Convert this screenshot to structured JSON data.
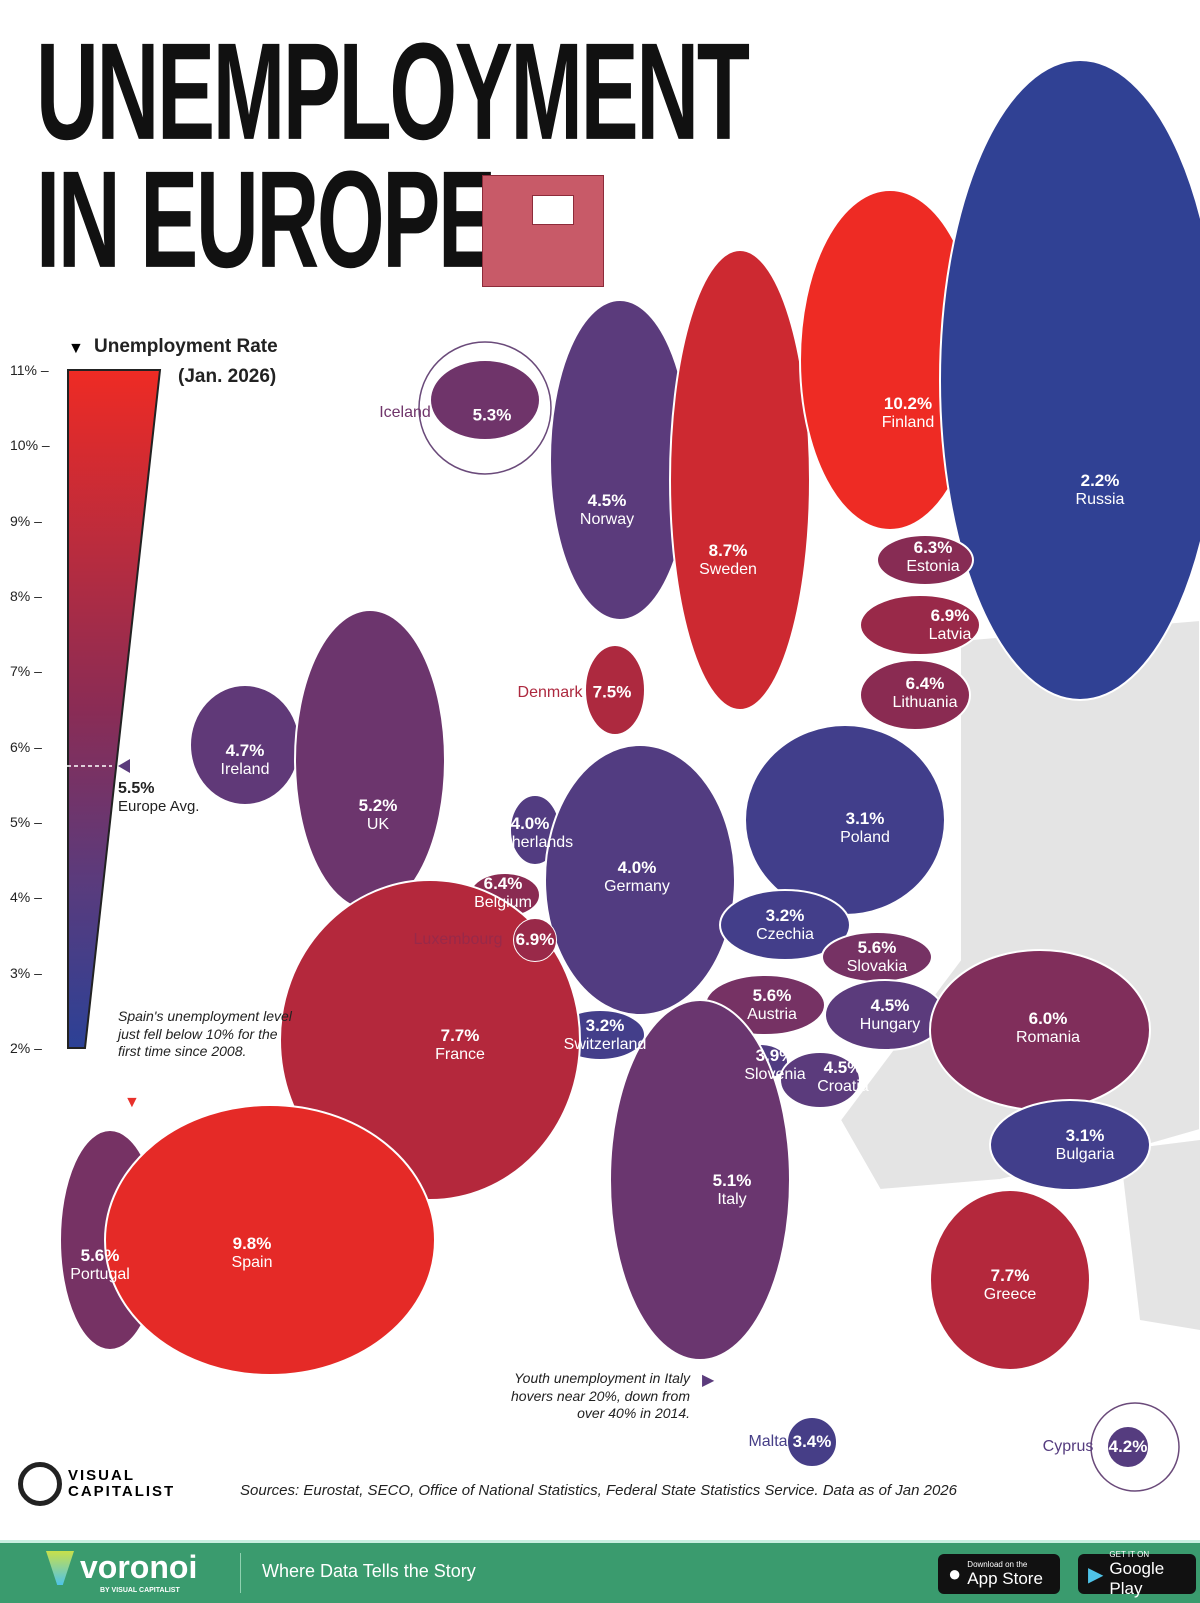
{
  "title": {
    "line1": "UNEMPLOYMENT",
    "line2": "IN EUROPE"
  },
  "legend": {
    "title": "Unemployment Rate",
    "subtitle": "(Jan. 2026)",
    "ticks": [
      "11%",
      "10%",
      "9%",
      "8%",
      "7%",
      "6%",
      "5%",
      "4%",
      "3%",
      "2%"
    ],
    "range": [
      2,
      11
    ],
    "average_value": "5.5%",
    "average_label": "Europe Avg.",
    "color_low": "#2c4196",
    "color_mid": "#6a3a78",
    "color_high": "#ee2b24"
  },
  "countries": [
    {
      "name": "Iceland",
      "value": "5.3%",
      "rate": 5.3
    },
    {
      "name": "Norway",
      "value": "4.5%",
      "rate": 4.5
    },
    {
      "name": "Sweden",
      "value": "8.7%",
      "rate": 8.7
    },
    {
      "name": "Finland",
      "value": "10.2%",
      "rate": 10.2
    },
    {
      "name": "Russia",
      "value": "2.2%",
      "rate": 2.2
    },
    {
      "name": "Estonia",
      "value": "6.3%",
      "rate": 6.3
    },
    {
      "name": "Latvia",
      "value": "6.9%",
      "rate": 6.9
    },
    {
      "name": "Lithuania",
      "value": "6.4%",
      "rate": 6.4
    },
    {
      "name": "Denmark",
      "value": "7.5%",
      "rate": 7.5
    },
    {
      "name": "Ireland",
      "value": "4.7%",
      "rate": 4.7
    },
    {
      "name": "UK",
      "value": "5.2%",
      "rate": 5.2
    },
    {
      "name": "Netherlands",
      "value": "4.0%",
      "rate": 4.0
    },
    {
      "name": "Belgium",
      "value": "6.4%",
      "rate": 6.4
    },
    {
      "name": "Luxembourg",
      "value": "6.9%",
      "rate": 6.9
    },
    {
      "name": "Germany",
      "value": "4.0%",
      "rate": 4.0
    },
    {
      "name": "Poland",
      "value": "3.1%",
      "rate": 3.1
    },
    {
      "name": "Czechia",
      "value": "3.2%",
      "rate": 3.2
    },
    {
      "name": "Slovakia",
      "value": "5.6%",
      "rate": 5.6
    },
    {
      "name": "Austria",
      "value": "5.6%",
      "rate": 5.6
    },
    {
      "name": "Hungary",
      "value": "4.5%",
      "rate": 4.5
    },
    {
      "name": "Romania",
      "value": "6.0%",
      "rate": 6.0
    },
    {
      "name": "Switzerland",
      "value": "3.2%",
      "rate": 3.2
    },
    {
      "name": "France",
      "value": "7.7%",
      "rate": 7.7
    },
    {
      "name": "Slovenia",
      "value": "3.9%",
      "rate": 3.9
    },
    {
      "name": "Croatia",
      "value": "4.5%",
      "rate": 4.5
    },
    {
      "name": "Bulgaria",
      "value": "3.1%",
      "rate": 3.1
    },
    {
      "name": "Italy",
      "value": "5.1%",
      "rate": 5.1
    },
    {
      "name": "Portugal",
      "value": "5.6%",
      "rate": 5.6
    },
    {
      "name": "Spain",
      "value": "9.8%",
      "rate": 9.8
    },
    {
      "name": "Greece",
      "value": "7.7%",
      "rate": 7.7
    },
    {
      "name": "Malta",
      "value": "3.4%",
      "rate": 3.4
    },
    {
      "name": "Cyprus",
      "value": "4.2%",
      "rate": 4.2
    }
  ],
  "notes": {
    "spain": "Spain's unemployment level just fell below 10% for the first time since 2008.",
    "italy": "Youth unemployment in Italy hovers near 20%, down from over 40% in 2014."
  },
  "sources": "Sources: Eurostat, SECO, Office of National Statistics, Federal State Statistics Service. Data as of Jan 2026",
  "brand": {
    "logo": "VISUAL CAPITALIST"
  },
  "footer": {
    "logo": "voronoi",
    "logo_sub": "BY VISUAL CAPITALIST",
    "tagline": "Where Data Tells the Story",
    "app_store_small": "Download on the",
    "app_store": "App Store",
    "google_play_small": "GET IT ON",
    "google_play": "Google Play",
    "color": "#3a9b6e"
  }
}
